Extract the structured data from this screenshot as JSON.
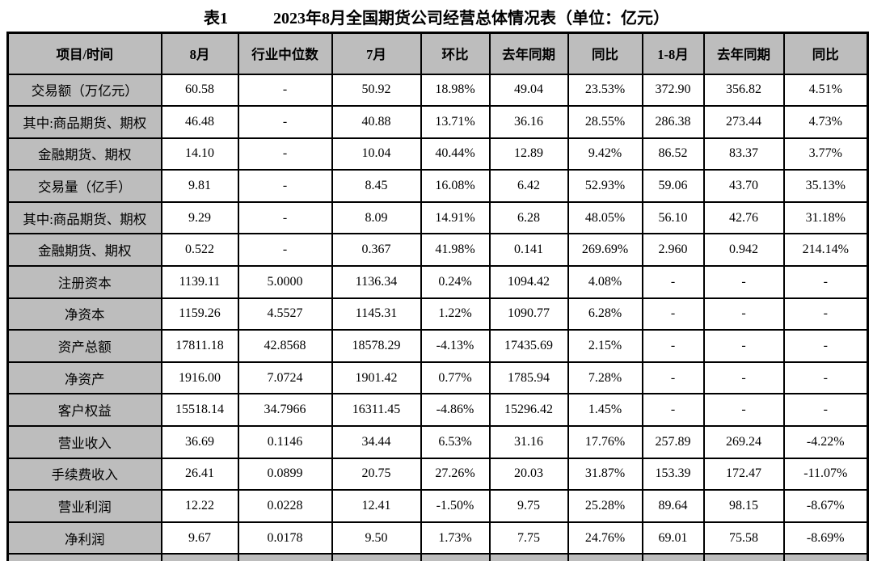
{
  "title": {
    "label": "表1",
    "text": "2023年8月全国期货公司经营总体情况表（单位：亿元）"
  },
  "colors": {
    "header_bg": "#bdbdbd",
    "border": "#000000"
  },
  "chart_data": {
    "type": "table",
    "title": "2023年8月全国期货公司经营总体情况表（单位：亿元）",
    "columns": [
      "项目/时间",
      "8月",
      "行业中位数",
      "7月",
      "环比",
      "去年同期",
      "同比",
      "1-8月",
      "去年同期",
      "同比"
    ],
    "rows": [
      [
        "交易额（万亿元）",
        "60.58",
        "-",
        "50.92",
        "18.98%",
        "49.04",
        "23.53%",
        "372.90",
        "356.82",
        "4.51%"
      ],
      [
        "其中:商品期货、期权",
        "46.48",
        "-",
        "40.88",
        "13.71%",
        "36.16",
        "28.55%",
        "286.38",
        "273.44",
        "4.73%"
      ],
      [
        "金融期货、期权",
        "14.10",
        "-",
        "10.04",
        "40.44%",
        "12.89",
        "9.42%",
        "86.52",
        "83.37",
        "3.77%"
      ],
      [
        "交易量（亿手）",
        "9.81",
        "-",
        "8.45",
        "16.08%",
        "6.42",
        "52.93%",
        "59.06",
        "43.70",
        "35.13%"
      ],
      [
        "其中:商品期货、期权",
        "9.29",
        "-",
        "8.09",
        "14.91%",
        "6.28",
        "48.05%",
        "56.10",
        "42.76",
        "31.18%"
      ],
      [
        "金融期货、期权",
        "0.522",
        "-",
        "0.367",
        "41.98%",
        "0.141",
        "269.69%",
        "2.960",
        "0.942",
        "214.14%"
      ],
      [
        "注册资本",
        "1139.11",
        "5.0000",
        "1136.34",
        "0.24%",
        "1094.42",
        "4.08%",
        "-",
        "-",
        "-"
      ],
      [
        "净资本",
        "1159.26",
        "4.5527",
        "1145.31",
        "1.22%",
        "1090.77",
        "6.28%",
        "-",
        "-",
        "-"
      ],
      [
        "资产总额",
        "17811.18",
        "42.8568",
        "18578.29",
        "-4.13%",
        "17435.69",
        "2.15%",
        "-",
        "-",
        "-"
      ],
      [
        "净资产",
        "1916.00",
        "7.0724",
        "1901.42",
        "0.77%",
        "1785.94",
        "7.28%",
        "-",
        "-",
        "-"
      ],
      [
        "客户权益",
        "15518.14",
        "34.7966",
        "16311.45",
        "-4.86%",
        "15296.42",
        "1.45%",
        "-",
        "-",
        "-"
      ],
      [
        "营业收入",
        "36.69",
        "0.1146",
        "34.44",
        "6.53%",
        "31.16",
        "17.76%",
        "257.89",
        "269.24",
        "-4.22%"
      ],
      [
        "手续费收入",
        "26.41",
        "0.0899",
        "20.75",
        "27.26%",
        "20.03",
        "31.87%",
        "153.39",
        "172.47",
        "-11.07%"
      ],
      [
        "营业利润",
        "12.22",
        "0.0228",
        "12.41",
        "-1.50%",
        "9.75",
        "25.28%",
        "89.64",
        "98.15",
        "-8.67%"
      ],
      [
        "净利润",
        "9.67",
        "0.0178",
        "9.50",
        "1.73%",
        "7.75",
        "24.76%",
        "69.01",
        "75.58",
        "-8.69%"
      ]
    ]
  },
  "table": {
    "headers": [
      "项目/时间",
      "8月",
      "行业中位数",
      "7月",
      "环比",
      "去年同期",
      "同比",
      "1-8月",
      "去年同期",
      "同比"
    ],
    "rows": [
      {
        "label": "交易额（万亿元）",
        "values": [
          "60.58",
          "-",
          "50.92",
          "18.98%",
          "49.04",
          "23.53%",
          "372.90",
          "356.82",
          "4.51%"
        ]
      },
      {
        "label": "其中:商品期货、期权",
        "values": [
          "46.48",
          "-",
          "40.88",
          "13.71%",
          "36.16",
          "28.55%",
          "286.38",
          "273.44",
          "4.73%"
        ]
      },
      {
        "label": "金融期货、期权",
        "values": [
          "14.10",
          "-",
          "10.04",
          "40.44%",
          "12.89",
          "9.42%",
          "86.52",
          "83.37",
          "3.77%"
        ]
      },
      {
        "label": "交易量（亿手）",
        "values": [
          "9.81",
          "-",
          "8.45",
          "16.08%",
          "6.42",
          "52.93%",
          "59.06",
          "43.70",
          "35.13%"
        ]
      },
      {
        "label": "其中:商品期货、期权",
        "values": [
          "9.29",
          "-",
          "8.09",
          "14.91%",
          "6.28",
          "48.05%",
          "56.10",
          "42.76",
          "31.18%"
        ]
      },
      {
        "label": "金融期货、期权",
        "values": [
          "0.522",
          "-",
          "0.367",
          "41.98%",
          "0.141",
          "269.69%",
          "2.960",
          "0.942",
          "214.14%"
        ]
      },
      {
        "label": "注册资本",
        "values": [
          "1139.11",
          "5.0000",
          "1136.34",
          "0.24%",
          "1094.42",
          "4.08%",
          "-",
          "-",
          "-"
        ]
      },
      {
        "label": "净资本",
        "values": [
          "1159.26",
          "4.5527",
          "1145.31",
          "1.22%",
          "1090.77",
          "6.28%",
          "-",
          "-",
          "-"
        ]
      },
      {
        "label": "资产总额",
        "values": [
          "17811.18",
          "42.8568",
          "18578.29",
          "-4.13%",
          "17435.69",
          "2.15%",
          "-",
          "-",
          "-"
        ]
      },
      {
        "label": "净资产",
        "values": [
          "1916.00",
          "7.0724",
          "1901.42",
          "0.77%",
          "1785.94",
          "7.28%",
          "-",
          "-",
          "-"
        ]
      },
      {
        "label": "客户权益",
        "values": [
          "15518.14",
          "34.7966",
          "16311.45",
          "-4.86%",
          "15296.42",
          "1.45%",
          "-",
          "-",
          "-"
        ]
      },
      {
        "label": "营业收入",
        "values": [
          "36.69",
          "0.1146",
          "34.44",
          "6.53%",
          "31.16",
          "17.76%",
          "257.89",
          "269.24",
          "-4.22%"
        ]
      },
      {
        "label": "手续费收入",
        "values": [
          "26.41",
          "0.0899",
          "20.75",
          "27.26%",
          "20.03",
          "31.87%",
          "153.39",
          "172.47",
          "-11.07%"
        ]
      },
      {
        "label": "营业利润",
        "values": [
          "12.22",
          "0.0228",
          "12.41",
          "-1.50%",
          "9.75",
          "25.28%",
          "89.64",
          "98.15",
          "-8.67%"
        ]
      },
      {
        "label": "净利润",
        "values": [
          "9.67",
          "0.0178",
          "9.50",
          "1.73%",
          "7.75",
          "24.76%",
          "69.01",
          "75.58",
          "-8.69%"
        ]
      }
    ]
  }
}
